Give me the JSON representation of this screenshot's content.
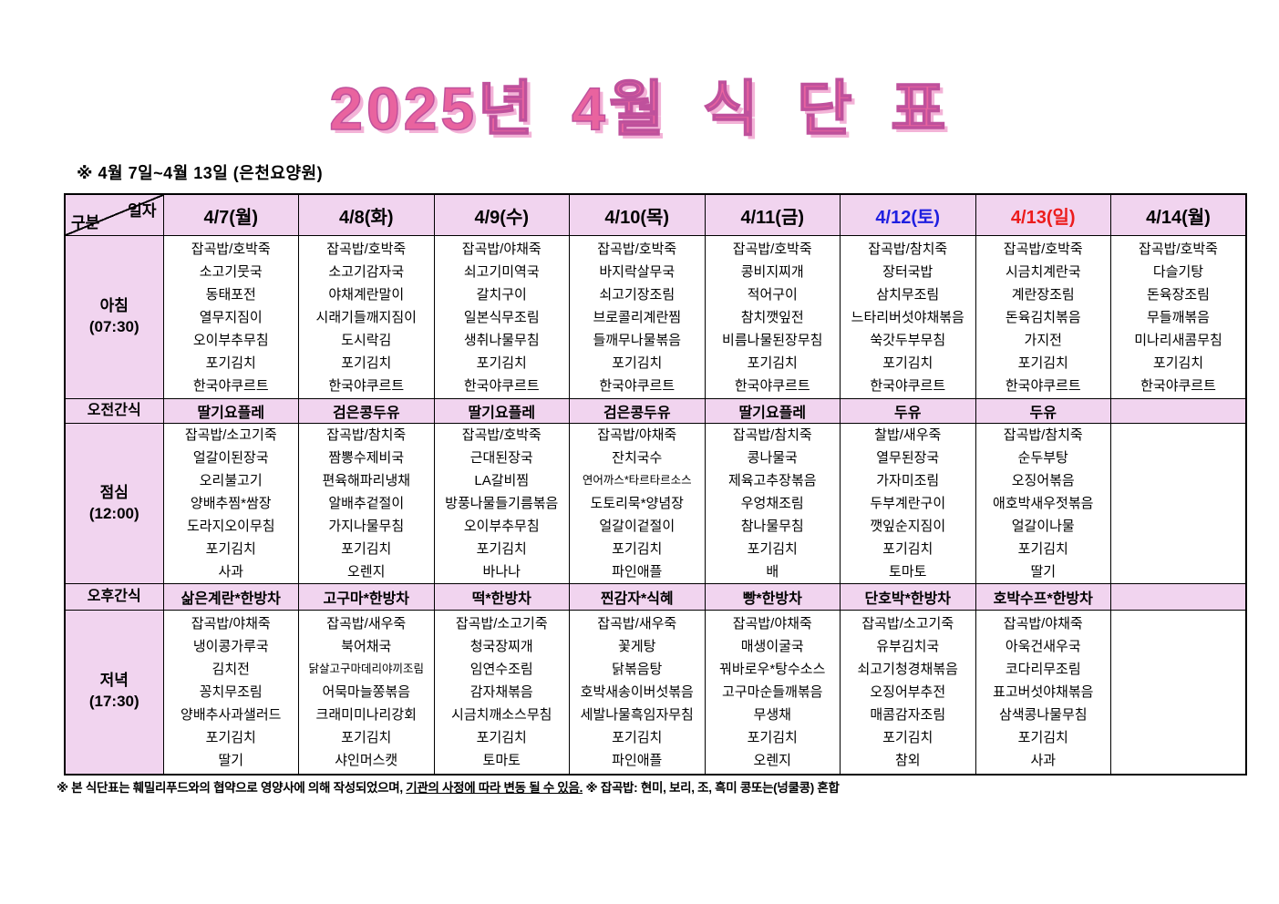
{
  "title": "2025년 4월 식 단 표",
  "subtitle": "※  4월 7일~4월 13일 (은천요양원)",
  "colors": {
    "title_pink": "#e9639f",
    "cell_pink": "#f1d4ef",
    "saturday_blue": "#1f1fe0",
    "sunday_red": "#ec1c1c",
    "weekday_black": "#000000"
  },
  "header": {
    "corner_top": "일자",
    "corner_bottom": "구분",
    "days": [
      {
        "label": "4/7(월)",
        "color": "#000000"
      },
      {
        "label": "4/8(화)",
        "color": "#000000"
      },
      {
        "label": "4/9(수)",
        "color": "#000000"
      },
      {
        "label": "4/10(목)",
        "color": "#000000"
      },
      {
        "label": "4/11(금)",
        "color": "#000000"
      },
      {
        "label": "4/12(토)",
        "color": "#1f1fe0"
      },
      {
        "label": "4/13(일)",
        "color": "#ec1c1c"
      },
      {
        "label": "4/14(월)",
        "color": "#000000"
      }
    ]
  },
  "rows": [
    {
      "id": "breakfast",
      "type": "meal",
      "label": "아침",
      "time": "(07:30)",
      "cells": [
        [
          "잡곡밥/호박죽",
          "소고기뭇국",
          "동태포전",
          "열무지짐이",
          "오이부추무침",
          "포기김치",
          "한국야쿠르트"
        ],
        [
          "잡곡밥/호박죽",
          "소고기감자국",
          "야채계란말이",
          "시래기들깨지짐이",
          "도시락김",
          "포기김치",
          "한국야쿠르트"
        ],
        [
          "잡곡밥/야채죽",
          "쇠고기미역국",
          "갈치구이",
          "일본식무조림",
          "생취나물무침",
          "포기김치",
          "한국야쿠르트"
        ],
        [
          "잡곡밥/호박죽",
          "바지락살무국",
          "쇠고기장조림",
          "브로콜리계란찜",
          "들깨무나물볶음",
          "포기김치",
          "한국야쿠르트"
        ],
        [
          "잡곡밥/호박죽",
          "콩비지찌개",
          "적어구이",
          "참치깻잎전",
          "비름나물된장무침",
          "포기김치",
          "한국야쿠르트"
        ],
        [
          "잡곡밥/참치죽",
          "장터국밥",
          "삼치무조림",
          "느타리버섯야채볶음",
          "쑥갓두부무침",
          "포기김치",
          "한국야쿠르트"
        ],
        [
          "잡곡밥/호박죽",
          "시금치계란국",
          "계란장조림",
          "돈육김치볶음",
          "가지전",
          "포기김치",
          "한국야쿠르트"
        ],
        [
          "잡곡밥/호박죽",
          "다슬기탕",
          "돈육장조림",
          "무들깨볶음",
          "미나리새콤무침",
          "포기김치",
          "한국야쿠르트"
        ]
      ]
    },
    {
      "id": "snack-am",
      "type": "snack",
      "label": "오전간식",
      "time": "",
      "cells": [
        "딸기요플레",
        "검은콩두유",
        "딸기요플레",
        "검은콩두유",
        "딸기요플레",
        "두유",
        "두유",
        ""
      ]
    },
    {
      "id": "lunch",
      "type": "meal",
      "label": "점심",
      "time": "(12:00)",
      "cells": [
        [
          "잡곡밥/소고기죽",
          "얼갈이된장국",
          "오리불고기",
          "양배추찜*쌈장",
          "도라지오이무침",
          "포기김치",
          "사과"
        ],
        [
          "잡곡밥/참치죽",
          "짬뽕수제비국",
          "편육해파리냉채",
          "알배추겉절이",
          "가지나물무침",
          "포기김치",
          "오렌지"
        ],
        [
          "잡곡밥/호박죽",
          "근대된장국",
          "LA갈비찜",
          "방풍나물들기름볶음",
          "오이부추무침",
          "포기김치",
          "바나나"
        ],
        [
          "잡곡밥/야채죽",
          "잔치국수",
          "연어까스*타르타르소스",
          "도토리묵*양념장",
          "얼갈이겉절이",
          "포기김치",
          "파인애플"
        ],
        [
          "잡곡밥/참치죽",
          "콩나물국",
          "제육고추장볶음",
          "우엉채조림",
          "참나물무침",
          "포기김치",
          "배"
        ],
        [
          "찰밥/새우죽",
          "열무된장국",
          "가자미조림",
          "두부계란구이",
          "깻잎순지짐이",
          "포기김치",
          "토마토"
        ],
        [
          "잡곡밥/참치죽",
          "순두부탕",
          "오징어볶음",
          "애호박새우젓볶음",
          "얼갈이나물",
          "포기김치",
          "딸기"
        ],
        []
      ]
    },
    {
      "id": "snack-pm",
      "type": "snack",
      "label": "오후간식",
      "time": "",
      "cells": [
        "삶은계란*한방차",
        "고구마*한방차",
        "떡*한방차",
        "찐감자*식혜",
        "빵*한방차",
        "단호박*한방차",
        "호박수프*한방차",
        ""
      ]
    },
    {
      "id": "dinner",
      "type": "meal",
      "label": "저녁",
      "time": "(17:30)",
      "cells": [
        [
          "잡곡밥/야채죽",
          "냉이콩가루국",
          "김치전",
          "꽁치무조림",
          "양배추사과샐러드",
          "포기김치",
          "딸기"
        ],
        [
          "잡곡밥/새우죽",
          "북어채국",
          "닭살고구마데리야끼조림",
          "어묵마늘쫑볶음",
          "크래미미나리강회",
          "포기김치",
          "샤인머스캣"
        ],
        [
          "잡곡밥/소고기죽",
          "청국장찌개",
          "임연수조림",
          "감자채볶음",
          "시금치깨소스무침",
          "포기김치",
          "토마토"
        ],
        [
          "잡곡밥/새우죽",
          "꽃게탕",
          "닭볶음탕",
          "호박새송이버섯볶음",
          "세발나물흑임자무침",
          "포기김치",
          "파인애플"
        ],
        [
          "잡곡밥/야채죽",
          "매생이굴국",
          "꿔바로우*탕수소스",
          "고구마순들깨볶음",
          "무생채",
          "포기김치",
          "오렌지"
        ],
        [
          "잡곡밥/소고기죽",
          "유부김치국",
          "쇠고기청경채볶음",
          "오징어부추전",
          "매콤감자조림",
          "포기김치",
          "참외"
        ],
        [
          "잡곡밥/야채죽",
          "아욱건새우국",
          "코다리무조림",
          "표고버섯야채볶음",
          "삼색콩나물무침",
          "포기김치",
          "사과"
        ],
        []
      ]
    }
  ],
  "footer": {
    "part1": "※  본 식단표는 훼밀리푸드와의 협약으로 영양사에 의해 작성되었으며, ",
    "underlined": "기관의 사정에 따라 변동 될 수 있음.",
    "part2": " ※ 잡곡밥: 현미, 보리, 조, 흑미 콩또는(넝쿨콩) 혼합"
  }
}
